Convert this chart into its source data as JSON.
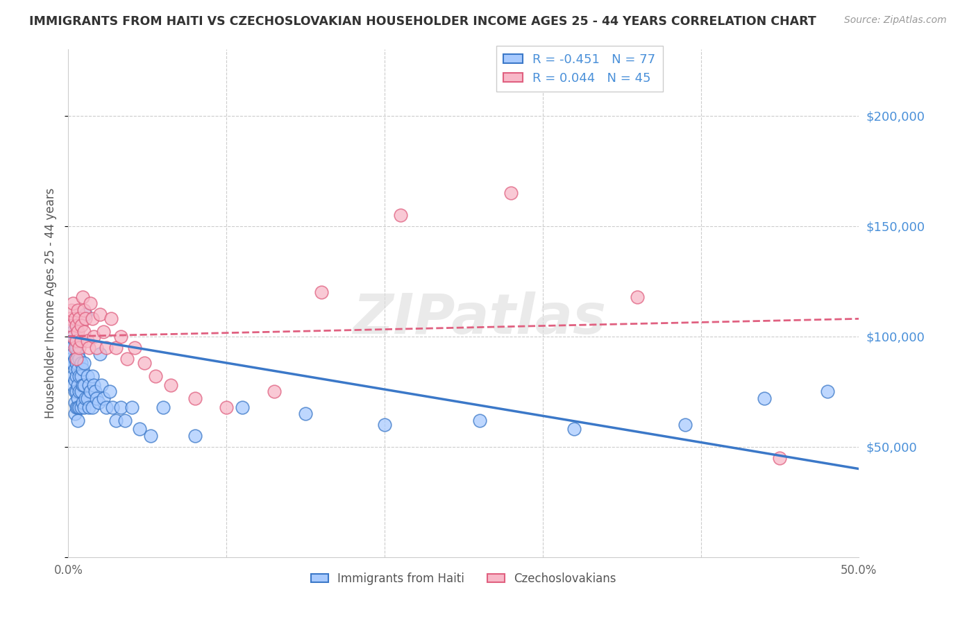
{
  "title": "IMMIGRANTS FROM HAITI VS CZECHOSLOVAKIAN HOUSEHOLDER INCOME AGES 25 - 44 YEARS CORRELATION CHART",
  "source": "Source: ZipAtlas.com",
  "ylabel": "Householder Income Ages 25 - 44 years",
  "legend_haiti_r": "-0.451",
  "legend_haiti_n": "77",
  "legend_czech_r": "0.044",
  "legend_czech_n": "45",
  "haiti_color": "#A8CAFE",
  "czech_color": "#F8B8C8",
  "haiti_line_color": "#3B78C8",
  "czech_line_color": "#E06080",
  "watermark": "ZIPatlas",
  "xlim": [
    0.0,
    0.5
  ],
  "ylim": [
    0,
    230000
  ],
  "haiti_x": [
    0.001,
    0.001,
    0.002,
    0.002,
    0.002,
    0.003,
    0.003,
    0.003,
    0.003,
    0.003,
    0.004,
    0.004,
    0.004,
    0.004,
    0.004,
    0.004,
    0.004,
    0.005,
    0.005,
    0.005,
    0.005,
    0.005,
    0.006,
    0.006,
    0.006,
    0.006,
    0.006,
    0.006,
    0.007,
    0.007,
    0.007,
    0.007,
    0.008,
    0.008,
    0.008,
    0.008,
    0.009,
    0.009,
    0.009,
    0.01,
    0.01,
    0.01,
    0.011,
    0.011,
    0.012,
    0.012,
    0.013,
    0.013,
    0.014,
    0.015,
    0.015,
    0.016,
    0.017,
    0.018,
    0.019,
    0.02,
    0.021,
    0.022,
    0.024,
    0.026,
    0.028,
    0.03,
    0.033,
    0.036,
    0.04,
    0.045,
    0.052,
    0.06,
    0.08,
    0.11,
    0.15,
    0.2,
    0.26,
    0.32,
    0.39,
    0.44,
    0.48
  ],
  "haiti_y": [
    105000,
    98000,
    100000,
    95000,
    88000,
    102000,
    92000,
    88000,
    82000,
    78000,
    98000,
    90000,
    85000,
    80000,
    75000,
    70000,
    65000,
    95000,
    88000,
    82000,
    75000,
    68000,
    92000,
    85000,
    78000,
    72000,
    68000,
    62000,
    90000,
    82000,
    75000,
    68000,
    88000,
    82000,
    75000,
    68000,
    85000,
    78000,
    70000,
    88000,
    78000,
    68000,
    110000,
    72000,
    82000,
    72000,
    78000,
    68000,
    75000,
    82000,
    68000,
    78000,
    75000,
    72000,
    70000,
    92000,
    78000,
    72000,
    68000,
    75000,
    68000,
    62000,
    68000,
    62000,
    68000,
    58000,
    55000,
    68000,
    55000,
    68000,
    65000,
    60000,
    62000,
    58000,
    60000,
    72000,
    75000
  ],
  "czech_x": [
    0.001,
    0.002,
    0.002,
    0.003,
    0.003,
    0.004,
    0.004,
    0.005,
    0.005,
    0.005,
    0.006,
    0.006,
    0.007,
    0.007,
    0.008,
    0.008,
    0.009,
    0.01,
    0.01,
    0.011,
    0.012,
    0.013,
    0.014,
    0.015,
    0.016,
    0.018,
    0.02,
    0.022,
    0.024,
    0.027,
    0.03,
    0.033,
    0.037,
    0.042,
    0.048,
    0.055,
    0.065,
    0.08,
    0.1,
    0.13,
    0.16,
    0.21,
    0.28,
    0.36,
    0.45
  ],
  "czech_y": [
    108000,
    112000,
    105000,
    100000,
    115000,
    108000,
    95000,
    105000,
    98000,
    90000,
    112000,
    102000,
    108000,
    95000,
    105000,
    98000,
    118000,
    112000,
    102000,
    108000,
    98000,
    95000,
    115000,
    108000,
    100000,
    95000,
    110000,
    102000,
    95000,
    108000,
    95000,
    100000,
    90000,
    95000,
    88000,
    82000,
    78000,
    72000,
    68000,
    75000,
    120000,
    155000,
    165000,
    118000,
    45000
  ]
}
